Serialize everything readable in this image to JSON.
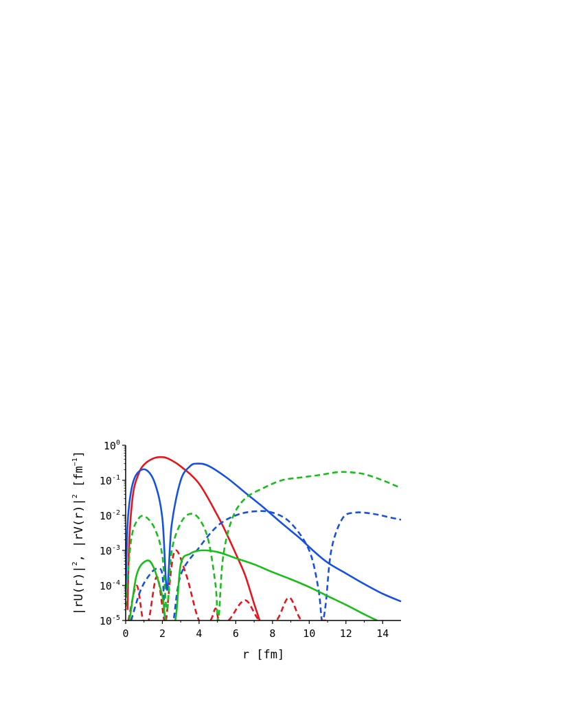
{
  "chart_data": {
    "type": "line",
    "title": "",
    "xlabel": "r [fm]",
    "ylabel": "|rU(r)|², |rV(r)|² [fm⁻¹]",
    "ylabel_parts": {
      "main": "|rU(r)|",
      "sq1": "2",
      "mid": ", |rV(r)|",
      "sq2": "2",
      "unit_open": " [fm",
      "unit_exp": "−1",
      "unit_close": "]"
    },
    "xlim": [
      0,
      15
    ],
    "ylim": [
      1e-05,
      1
    ],
    "y_scale": "log",
    "grid": false,
    "legend": "none",
    "x_ticks": [
      0,
      2,
      4,
      6,
      8,
      10,
      12,
      14
    ],
    "x_tick_labels": [
      "0",
      "2",
      "4",
      "6",
      "8",
      "10",
      "12",
      "14"
    ],
    "y_ticks": [
      {
        "value": 1,
        "base": "10",
        "exp": "0"
      },
      {
        "value": 0.1,
        "base": "10",
        "exp": "-1"
      },
      {
        "value": 0.01,
        "base": "10",
        "exp": "-2"
      },
      {
        "value": 0.001,
        "base": "10",
        "exp": "-3"
      },
      {
        "value": 0.0001,
        "base": "10",
        "exp": "-4"
      },
      {
        "value": 1e-05,
        "base": "10",
        "exp": "-5"
      }
    ],
    "series": [
      {
        "color": "#e8141c",
        "dash": "solid",
        "points": [
          [
            0.1,
            2e-05
          ],
          [
            0.2,
            0.002
          ],
          [
            0.4,
            0.04
          ],
          [
            0.7,
            0.15
          ],
          [
            1.0,
            0.28
          ],
          [
            1.5,
            0.42
          ],
          [
            1.9,
            0.46
          ],
          [
            2.3,
            0.42
          ],
          [
            3.0,
            0.25
          ],
          [
            4.0,
            0.08
          ],
          [
            5.0,
            0.01
          ],
          [
            5.5,
            0.003
          ],
          [
            6.0,
            0.0008
          ],
          [
            6.5,
            0.0002
          ],
          [
            7.0,
            3e-05
          ],
          [
            7.3,
            1e-05
          ]
        ]
      },
      {
        "color": "#e8141c",
        "dash": "dashed",
        "points": [
          [
            0.15,
            1e-05
          ],
          [
            0.6,
            0.0001
          ],
          [
            0.95,
            1e-05
          ],
          [
            1.25,
            1e-05
          ],
          [
            1.7,
            0.00018
          ],
          [
            2.1,
            1e-05
          ],
          [
            2.2,
            1e-05
          ],
          [
            2.65,
            0.0009
          ],
          [
            3.3,
            0.0002
          ],
          [
            4.0,
            1e-05
          ],
          [
            4.6,
            1e-05
          ],
          [
            4.9,
            2.2e-05
          ],
          [
            5.1,
            1e-05
          ],
          [
            5.6,
            1e-05
          ],
          [
            6.5,
            3.8e-05
          ],
          [
            7.3,
            1e-05
          ],
          [
            8.2,
            1e-05
          ],
          [
            8.9,
            4.5e-05
          ],
          [
            9.6,
            1e-05
          ],
          [
            10.6,
            1e-05
          ],
          [
            10.9,
            1e-05
          ],
          [
            11.1,
            1e-05
          ]
        ]
      },
      {
        "color": "#1550e6",
        "dash": "solid",
        "points": [
          [
            0.0,
            5e-05
          ],
          [
            0.1,
            0.005
          ],
          [
            0.3,
            0.05
          ],
          [
            0.6,
            0.15
          ],
          [
            1.1,
            0.2
          ],
          [
            1.6,
            0.08
          ],
          [
            2.0,
            0.008
          ],
          [
            2.25,
            7.5e-05
          ],
          [
            2.5,
            0.005
          ],
          [
            3.0,
            0.1
          ],
          [
            3.5,
            0.25
          ],
          [
            3.9,
            0.3
          ],
          [
            4.5,
            0.26
          ],
          [
            5.5,
            0.12
          ],
          [
            6.5,
            0.045
          ],
          [
            7.5,
            0.017
          ],
          [
            8.5,
            0.006
          ],
          [
            9.5,
            0.0022
          ],
          [
            10.2,
            0.001
          ],
          [
            11.0,
            0.00045
          ],
          [
            12.0,
            0.00022
          ],
          [
            13.0,
            0.00011
          ],
          [
            14.0,
            5.8e-05
          ],
          [
            15.0,
            3.5e-05
          ]
        ]
      },
      {
        "color": "#1550e6",
        "dash": "dashed",
        "points": [
          [
            0.3,
            1e-05
          ],
          [
            0.8,
            7e-05
          ],
          [
            1.3,
            0.0002
          ],
          [
            1.7,
            0.0003
          ],
          [
            2.0,
            0.0002
          ],
          [
            2.15,
            1e-05
          ],
          [
            2.4,
            1e-05
          ],
          [
            2.6,
            1e-05
          ],
          [
            3.0,
            0.0002
          ],
          [
            4.0,
            0.0012
          ],
          [
            5.0,
            0.005
          ],
          [
            6.0,
            0.01
          ],
          [
            7.0,
            0.013
          ],
          [
            8.0,
            0.012
          ],
          [
            9.0,
            0.006
          ],
          [
            10.0,
            0.001
          ],
          [
            10.5,
            8e-05
          ],
          [
            10.7,
            1e-05
          ],
          [
            10.9,
            3e-05
          ],
          [
            11.2,
            0.001
          ],
          [
            11.8,
            0.008
          ],
          [
            12.5,
            0.012
          ],
          [
            13.5,
            0.011
          ],
          [
            14.5,
            0.0085
          ],
          [
            15.0,
            0.0075
          ]
        ]
      },
      {
        "color": "#18be18",
        "dash": "solid",
        "points": [
          [
            0.0,
            1e-05
          ],
          [
            0.2,
            1e-05
          ],
          [
            0.6,
            0.0002
          ],
          [
            1.1,
            0.0005
          ],
          [
            1.5,
            0.00035
          ],
          [
            2.0,
            5e-05
          ],
          [
            2.2,
            1e-05
          ],
          [
            2.7,
            1e-05
          ],
          [
            3.0,
            0.0004
          ],
          [
            3.5,
            0.0008
          ],
          [
            4.1,
            0.001
          ],
          [
            5.0,
            0.0009
          ],
          [
            6.0,
            0.0006
          ],
          [
            7.0,
            0.0004
          ],
          [
            8.0,
            0.00024
          ],
          [
            9.0,
            0.00015
          ],
          [
            10.0,
            9e-05
          ],
          [
            11.0,
            5e-05
          ],
          [
            12.0,
            2.8e-05
          ],
          [
            13.0,
            1.5e-05
          ],
          [
            13.7,
            1e-05
          ]
        ]
      },
      {
        "color": "#18be18",
        "dash": "dashed",
        "points": [
          [
            0.0,
            2.5e-05
          ],
          [
            0.3,
            0.002
          ],
          [
            0.7,
            0.008
          ],
          [
            1.1,
            0.009
          ],
          [
            1.6,
            0.004
          ],
          [
            2.0,
            0.0007
          ],
          [
            2.25,
            2e-05
          ],
          [
            2.5,
            0.0009
          ],
          [
            3.0,
            0.006
          ],
          [
            3.5,
            0.011
          ],
          [
            4.0,
            0.008
          ],
          [
            4.5,
            0.002
          ],
          [
            4.9,
            0.0001
          ],
          [
            5.05,
            1e-05
          ],
          [
            5.3,
            0.0006
          ],
          [
            5.8,
            0.008
          ],
          [
            6.5,
            0.03
          ],
          [
            7.5,
            0.06
          ],
          [
            8.5,
            0.1
          ],
          [
            9.5,
            0.12
          ],
          [
            10.5,
            0.14
          ],
          [
            11.5,
            0.17
          ],
          [
            12.2,
            0.17
          ],
          [
            13.0,
            0.15
          ],
          [
            14.0,
            0.1
          ],
          [
            15.0,
            0.06
          ]
        ]
      }
    ]
  }
}
